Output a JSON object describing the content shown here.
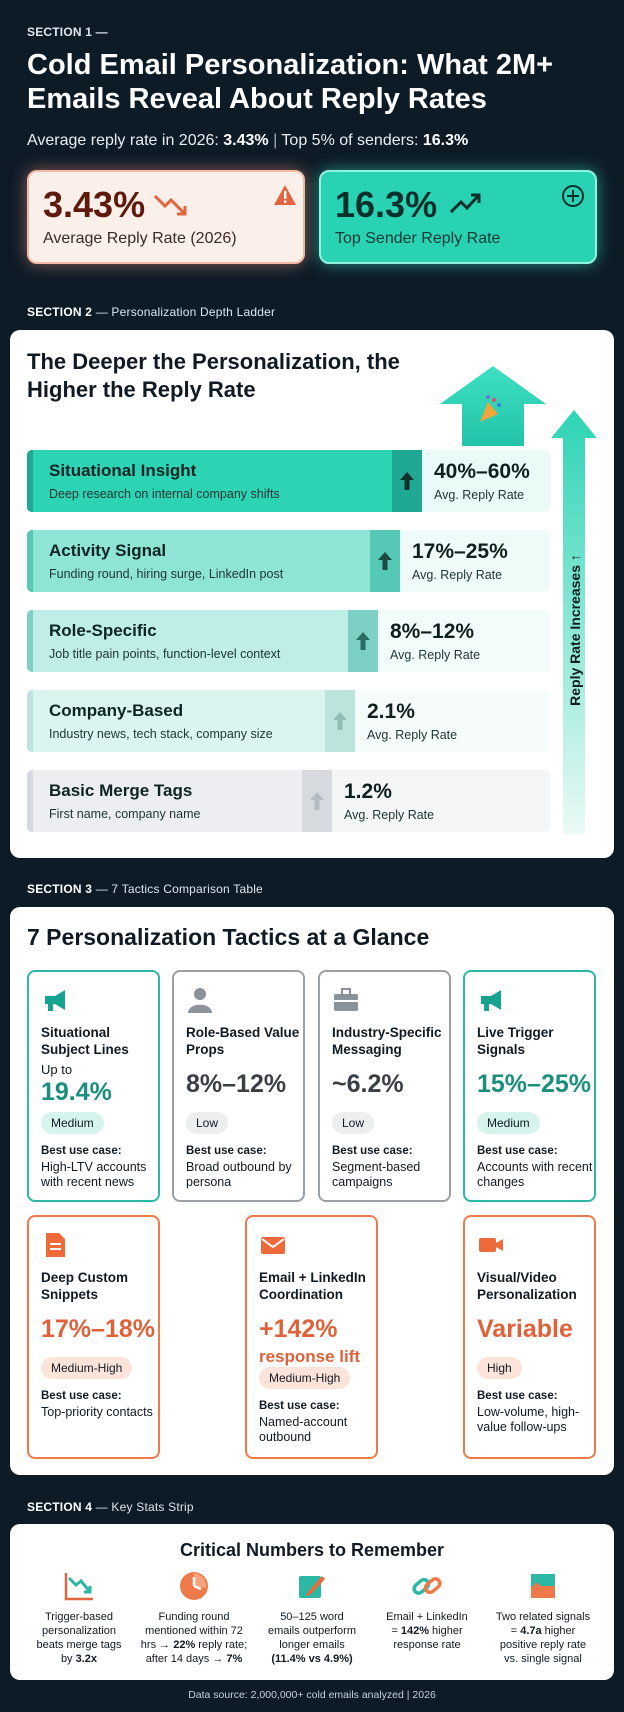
{
  "section1": {
    "label": "SECTION 1 —",
    "title": "Cold Email Personalization: What 2M+ Emails Reveal About Reply Rates",
    "subtitle_prefix": "Average reply rate in 2026:",
    "subtitle_avg": "3.43%",
    "subtitle_mid": "Top 5% of senders:",
    "subtitle_top": "16.3%",
    "kpi_left": {
      "value": "3.43%",
      "caption": "Average Reply Rate (2026)",
      "icon": "warning-icon"
    },
    "kpi_right": {
      "value": "16.3%",
      "caption": "Top Sender Reply Rate",
      "icon": "plus-circle-icon"
    }
  },
  "section2": {
    "label_bold": "SECTION 2",
    "label_rest": "— Personalization Depth Ladder",
    "title": "The Deeper the Personalization, the Higher the Reply Rate",
    "axis_label": "Reply Rate Increases ↑",
    "rungs": [
      {
        "name": "Situational Insight",
        "desc": "Deep research on internal company shifts",
        "value": "40%–60%",
        "caption": "Avg. Reply Rate"
      },
      {
        "name": "Activity Signal",
        "desc": "Funding round, hiring surge, LinkedIn post",
        "value": "17%–25%",
        "caption": "Avg. Reply Rate"
      },
      {
        "name": "Role-Specific",
        "desc": "Job title pain points, function-level context",
        "value": "8%–12%",
        "caption": "Avg. Reply Rate"
      },
      {
        "name": "Company-Based",
        "desc": "Industry news, tech stack, company size",
        "value": "2.1%",
        "caption": "Avg. Reply Rate"
      },
      {
        "name": "Basic Merge Tags",
        "desc": "First name, company name",
        "value": "1.2%",
        "caption": "Avg. Reply Rate"
      }
    ],
    "colors": {
      "top": "#2dd4b4",
      "bottom": "#e9ebee"
    }
  },
  "section3": {
    "label_bold": "SECTION 3",
    "label_rest": "— 7 Tactics Comparison Table",
    "title": "7 Personalization Tactics at a Glance",
    "best_use_label": "Best use case:",
    "tactics": [
      {
        "name": "Situational Subject Lines",
        "prefix": "Up to",
        "value": "19.4%",
        "level": "Medium",
        "use": "High-LTV accounts with recent news",
        "icon": "megaphone-icon",
        "style": "teal"
      },
      {
        "name": "Role-Based Value Props",
        "prefix": "",
        "value": "8%–12%",
        "level": "Low",
        "use": "Broad outbound by persona",
        "icon": "person-icon",
        "style": "gray"
      },
      {
        "name": "Industry-Specific Messaging",
        "prefix": "",
        "value": "~6.2%",
        "level": "Low",
        "use": "Segment-based campaigns",
        "icon": "briefcase-icon",
        "style": "gray"
      },
      {
        "name": "Live Trigger Signals",
        "prefix": "",
        "value": "15%–25%",
        "level": "Medium",
        "use": "Accounts with recent changes",
        "icon": "megaphone-icon",
        "style": "teal"
      },
      {
        "name": "Deep Custom Snippets",
        "prefix": "",
        "value": "17%–18%",
        "level": "Medium-High",
        "use": "Top-priority contacts",
        "icon": "document-icon",
        "style": "orange"
      },
      {
        "name": "Email + LinkedIn Coordination",
        "prefix": "",
        "value": "+142%",
        "value2": "response lift",
        "level": "Medium-High",
        "use": "Named-account outbound",
        "icon": "envelope-icon",
        "style": "orange"
      },
      {
        "name": "Visual/Video Personalization",
        "prefix": "",
        "value": "Variable",
        "level": "High",
        "use": "Low-volume, high-value follow-ups",
        "icon": "video-camera-icon",
        "style": "orange"
      }
    ]
  },
  "section4": {
    "label_bold": "SECTION 4",
    "label_rest": "— Key Stats Strip",
    "title": "Critical Numbers to Remember",
    "stats": [
      {
        "icon": "chart-down-icon",
        "l1": "Trigger-based",
        "l2": "personalization",
        "l3": "beats merge tags",
        "l4": "by 3.2x"
      },
      {
        "icon": "clock-icon",
        "l1": "Funding round",
        "l2": "mentioned within 72",
        "l3": "hrs → 22% reply rate;",
        "l4": "after 14 days → 7%"
      },
      {
        "icon": "pencil-icon",
        "l1": "50–125 word",
        "l2": "emails outperform",
        "l3": "longer emails",
        "l4": "(11.4% vs 4.9%)"
      },
      {
        "icon": "link-icon",
        "l1": "Email + LinkedIn",
        "l2": "= 142% higher",
        "l3": "response rate",
        "l4": ""
      },
      {
        "icon": "puzzle-icon",
        "l1": "Two related signals",
        "l2": "= 4.7a higher",
        "l3": "positive reply rate",
        "l4": "vs. single signal"
      }
    ],
    "footnote": "Data source: 2,000,000+ cold emails analyzed | 2026"
  }
}
